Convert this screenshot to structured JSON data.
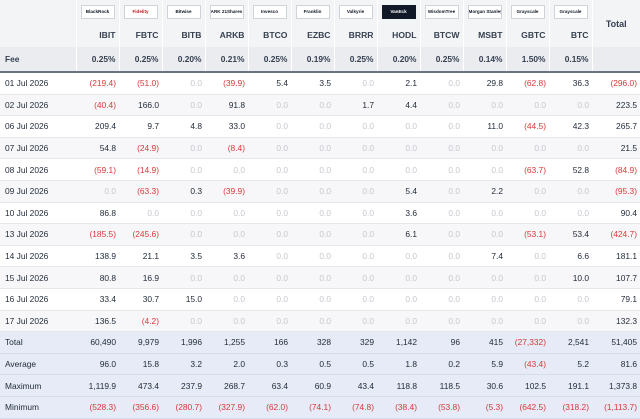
{
  "table": {
    "fee_label": "Fee",
    "total_header": "Total",
    "issuers": [
      "BlackRock",
      "Fidelity",
      "Bitwise",
      "ARK 21Shares",
      "Invesco",
      "Franklin",
      "Valkyrie",
      "VanEck",
      "WisdomTree",
      "Morgan Stanley",
      "Grayscale",
      "Grayscale"
    ],
    "tickers": [
      "IBIT",
      "FBTC",
      "BITB",
      "ARKB",
      "BTCO",
      "EZBC",
      "BRRR",
      "HODL",
      "BTCW",
      "MSBT",
      "GBTC",
      "BTC"
    ],
    "fees": [
      "0.25%",
      "0.25%",
      "0.20%",
      "0.21%",
      "0.25%",
      "0.19%",
      "0.25%",
      "0.20%",
      "0.25%",
      "0.14%",
      "1.50%",
      "0.15%"
    ],
    "rows": [
      {
        "date": "01 Jul 2026",
        "values": [
          "(219.4)",
          "(51.0)",
          "0.0",
          "(39.9)",
          "5.4",
          "3.5",
          "0.0",
          "2.1",
          "0.0",
          "29.8",
          "(62.8)",
          "36.3"
        ],
        "total": "(296.0)"
      },
      {
        "date": "02 Jul 2026",
        "values": [
          "(40.4)",
          "166.0",
          "0.0",
          "91.8",
          "0.0",
          "0.0",
          "1.7",
          "4.4",
          "0.0",
          "0.0",
          "0.0",
          "0.0"
        ],
        "total": "223.5"
      },
      {
        "date": "06 Jul 2026",
        "values": [
          "209.4",
          "9.7",
          "4.8",
          "33.0",
          "0.0",
          "0.0",
          "0.0",
          "0.0",
          "0.0",
          "11.0",
          "(44.5)",
          "42.3"
        ],
        "total": "265.7"
      },
      {
        "date": "07 Jul 2026",
        "values": [
          "54.8",
          "(24.9)",
          "0.0",
          "(8.4)",
          "0.0",
          "0.0",
          "0.0",
          "0.0",
          "0.0",
          "0.0",
          "0.0",
          "0.0"
        ],
        "total": "21.5"
      },
      {
        "date": "08 Jul 2026",
        "values": [
          "(59.1)",
          "(14.9)",
          "0.0",
          "0.0",
          "0.0",
          "0.0",
          "0.0",
          "0.0",
          "0.0",
          "0.0",
          "(63.7)",
          "52.8"
        ],
        "total": "(84.9)"
      },
      {
        "date": "09 Jul 2026",
        "values": [
          "0.0",
          "(63.3)",
          "0.3",
          "(39.9)",
          "0.0",
          "0.0",
          "0.0",
          "5.4",
          "0.0",
          "2.2",
          "0.0",
          "0.0"
        ],
        "total": "(95.3)"
      },
      {
        "date": "10 Jul 2026",
        "values": [
          "86.8",
          "0.0",
          "0.0",
          "0.0",
          "0.0",
          "0.0",
          "0.0",
          "3.6",
          "0.0",
          "0.0",
          "0.0",
          "0.0"
        ],
        "total": "90.4"
      },
      {
        "date": "13 Jul 2026",
        "values": [
          "(185.5)",
          "(245.6)",
          "0.0",
          "0.0",
          "0.0",
          "0.0",
          "0.0",
          "6.1",
          "0.0",
          "0.0",
          "(53.1)",
          "53.4"
        ],
        "total": "(424.7)"
      },
      {
        "date": "14 Jul 2026",
        "values": [
          "138.9",
          "21.1",
          "3.5",
          "3.6",
          "0.0",
          "0.0",
          "0.0",
          "0.0",
          "0.0",
          "7.4",
          "0.0",
          "6.6"
        ],
        "total": "181.1"
      },
      {
        "date": "15 Jul 2026",
        "values": [
          "80.8",
          "16.9",
          "0.0",
          "0.0",
          "0.0",
          "0.0",
          "0.0",
          "0.0",
          "0.0",
          "0.0",
          "0.0",
          "10.0"
        ],
        "total": "107.7"
      },
      {
        "date": "16 Jul 2026",
        "values": [
          "33.4",
          "30.7",
          "15.0",
          "0.0",
          "0.0",
          "0.0",
          "0.0",
          "0.0",
          "0.0",
          "0.0",
          "0.0",
          "0.0"
        ],
        "total": "79.1"
      },
      {
        "date": "17 Jul 2026",
        "values": [
          "136.5",
          "(4.2)",
          "0.0",
          "0.0",
          "0.0",
          "0.0",
          "0.0",
          "0.0",
          "0.0",
          "0.0",
          "0.0",
          "0.0"
        ],
        "total": "132.3"
      }
    ],
    "summary": [
      {
        "label": "Total",
        "values": [
          "60,490",
          "9,979",
          "1,996",
          "1,255",
          "166",
          "328",
          "329",
          "1,142",
          "96",
          "415",
          "(27,332)",
          "2,541"
        ],
        "total": "51,405"
      },
      {
        "label": "Average",
        "values": [
          "96.0",
          "15.8",
          "3.2",
          "2.0",
          "0.3",
          "0.5",
          "0.5",
          "1.8",
          "0.2",
          "5.9",
          "(43.4)",
          "5.2"
        ],
        "total": "81.6"
      },
      {
        "label": "Maximum",
        "values": [
          "1,119.9",
          "473.4",
          "237.9",
          "268.7",
          "63.4",
          "60.9",
          "43.4",
          "118.8",
          "118.5",
          "30.6",
          "102.5",
          "191.1"
        ],
        "total": "1,373.8"
      },
      {
        "label": "Minimum",
        "values": [
          "(528.3)",
          "(356.6)",
          "(280.7)",
          "(327.9)",
          "(62.0)",
          "(74.1)",
          "(74.8)",
          "(38.4)",
          "(53.8)",
          "(5.3)",
          "(642.5)",
          "(318.2)"
        ],
        "total": "(1,113.7)"
      }
    ]
  }
}
